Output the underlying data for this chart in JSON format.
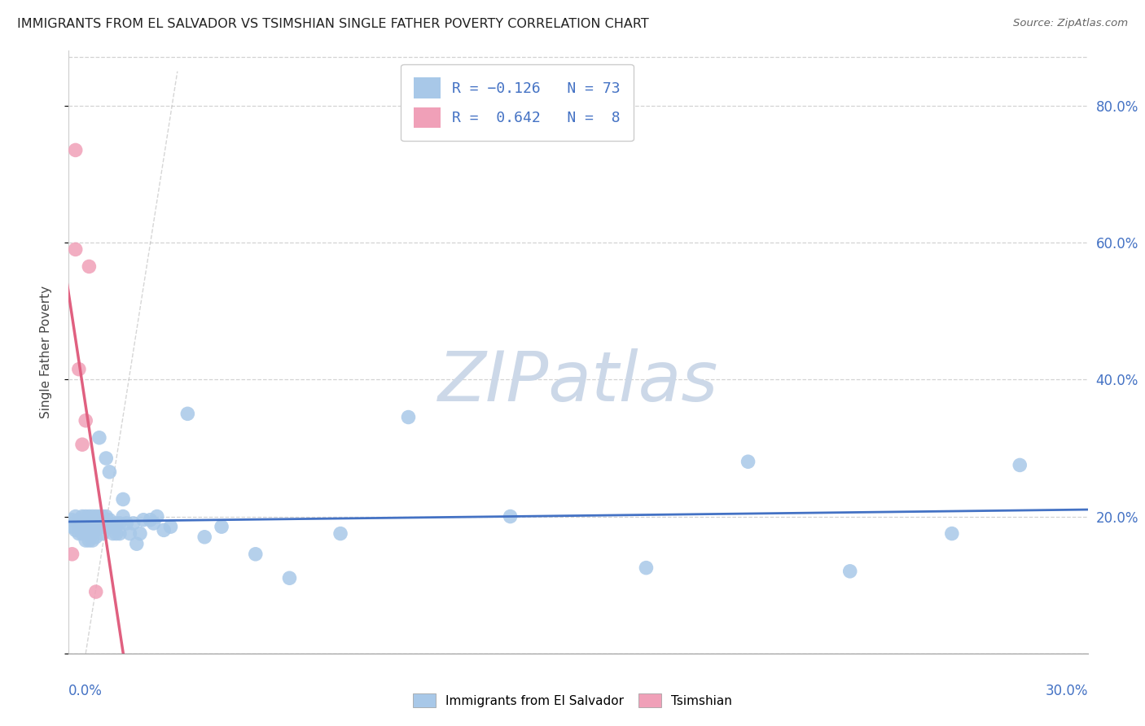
{
  "title": "IMMIGRANTS FROM EL SALVADOR VS TSIMSHIAN SINGLE FATHER POVERTY CORRELATION CHART",
  "source": "Source: ZipAtlas.com",
  "ylabel": "Single Father Poverty",
  "ylim": [
    0.0,
    0.88
  ],
  "xlim": [
    0.0,
    0.3
  ],
  "yticks": [
    0.0,
    0.2,
    0.4,
    0.6,
    0.8
  ],
  "ytick_labels": [
    "",
    "20.0%",
    "40.0%",
    "60.0%",
    "80.0%"
  ],
  "blue_color": "#a8c8e8",
  "pink_color": "#f0a0b8",
  "blue_line_color": "#4472c4",
  "pink_line_color": "#e06080",
  "grid_color": "#c8c8c8",
  "watermark_text": "ZIPatlas",
  "watermark_color": "#ccd8e8",
  "blue_scatter_x": [
    0.001,
    0.001,
    0.002,
    0.002,
    0.003,
    0.003,
    0.003,
    0.004,
    0.004,
    0.004,
    0.005,
    0.005,
    0.005,
    0.005,
    0.006,
    0.006,
    0.006,
    0.006,
    0.006,
    0.007,
    0.007,
    0.007,
    0.007,
    0.007,
    0.008,
    0.008,
    0.008,
    0.008,
    0.009,
    0.009,
    0.009,
    0.01,
    0.01,
    0.01,
    0.01,
    0.011,
    0.011,
    0.011,
    0.012,
    0.012,
    0.012,
    0.013,
    0.013,
    0.014,
    0.014,
    0.015,
    0.015,
    0.016,
    0.016,
    0.017,
    0.018,
    0.019,
    0.02,
    0.021,
    0.022,
    0.024,
    0.025,
    0.026,
    0.028,
    0.03,
    0.035,
    0.04,
    0.045,
    0.055,
    0.065,
    0.08,
    0.1,
    0.13,
    0.17,
    0.2,
    0.23,
    0.26,
    0.28
  ],
  "blue_scatter_y": [
    0.195,
    0.185,
    0.2,
    0.18,
    0.195,
    0.185,
    0.175,
    0.2,
    0.19,
    0.175,
    0.195,
    0.185,
    0.2,
    0.165,
    0.2,
    0.195,
    0.185,
    0.175,
    0.165,
    0.2,
    0.195,
    0.185,
    0.175,
    0.165,
    0.2,
    0.195,
    0.18,
    0.17,
    0.2,
    0.315,
    0.185,
    0.2,
    0.19,
    0.185,
    0.175,
    0.285,
    0.2,
    0.185,
    0.265,
    0.195,
    0.185,
    0.185,
    0.175,
    0.19,
    0.175,
    0.19,
    0.175,
    0.2,
    0.225,
    0.19,
    0.175,
    0.19,
    0.16,
    0.175,
    0.195,
    0.195,
    0.19,
    0.2,
    0.18,
    0.185,
    0.35,
    0.17,
    0.185,
    0.145,
    0.11,
    0.175,
    0.345,
    0.2,
    0.125,
    0.28,
    0.12,
    0.175,
    0.275
  ],
  "pink_scatter_x": [
    0.001,
    0.002,
    0.002,
    0.003,
    0.004,
    0.005,
    0.006,
    0.008
  ],
  "pink_scatter_y": [
    0.145,
    0.59,
    0.735,
    0.415,
    0.305,
    0.34,
    0.565,
    0.09
  ],
  "pink_trend_x0": -0.001,
  "pink_trend_x1": 0.012,
  "blue_trend_x0": 0.0,
  "blue_trend_x1": 0.3,
  "ref_line_x": [
    0.005,
    0.032
  ],
  "ref_line_y": [
    0.0,
    0.85
  ]
}
